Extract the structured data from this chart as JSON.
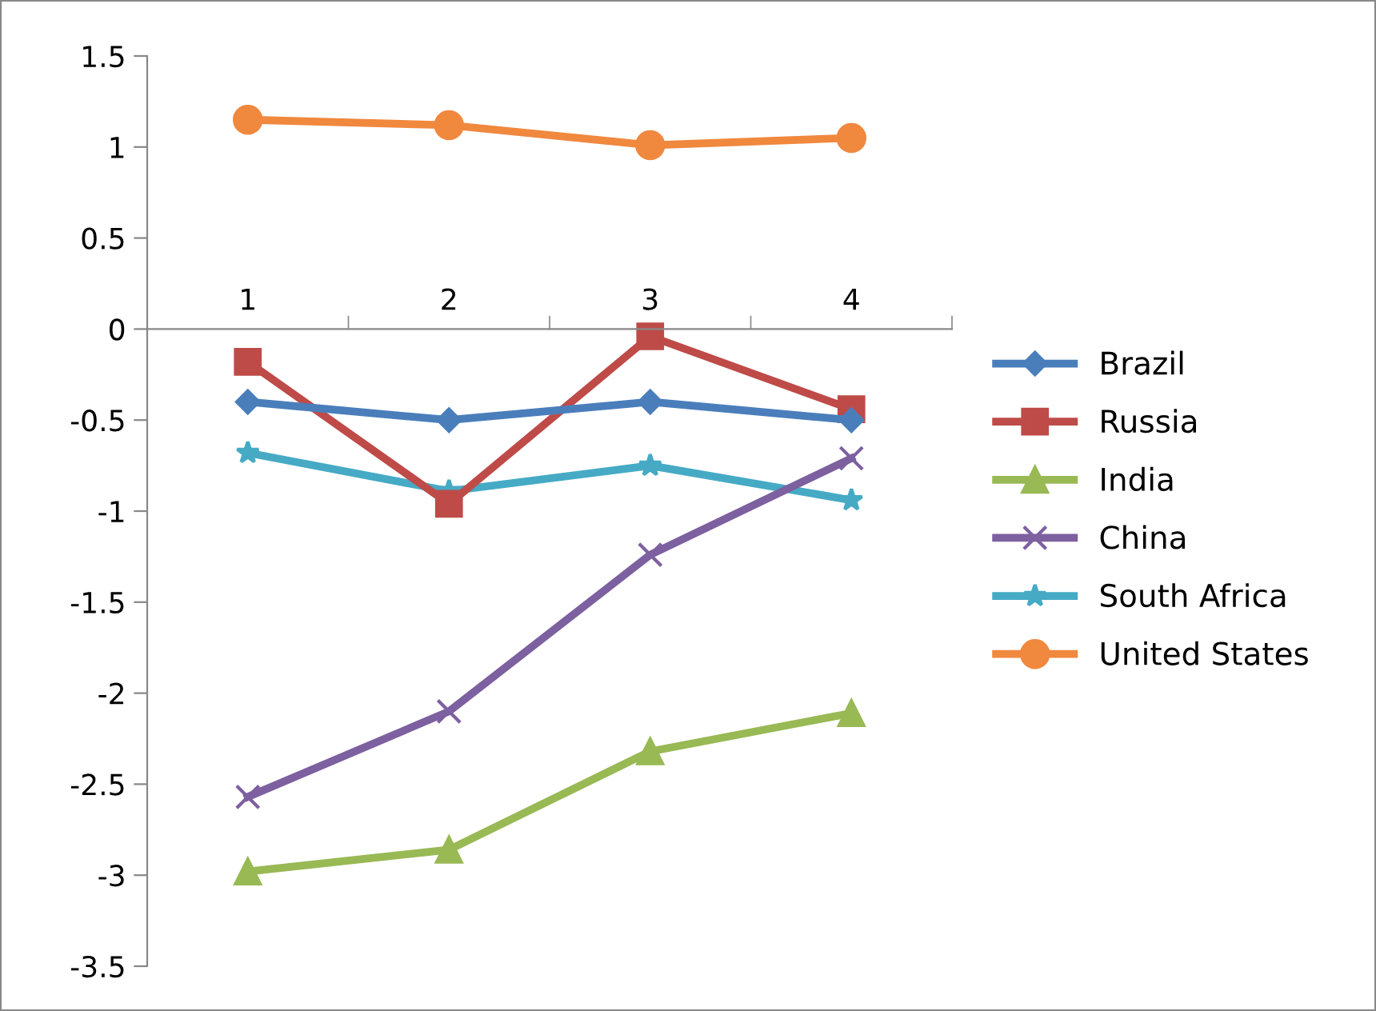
{
  "chart_data": {
    "type": "line",
    "categories": [
      "1",
      "2",
      "3",
      "4"
    ],
    "series": [
      {
        "name": "Brazil",
        "color": "#4a7ebb",
        "marker": "diamond",
        "values": [
          -0.4,
          -0.5,
          -0.4,
          -0.5
        ]
      },
      {
        "name": "Russia",
        "color": "#be4b48",
        "marker": "square",
        "values": [
          -0.18,
          -0.96,
          -0.04,
          -0.44
        ]
      },
      {
        "name": "India",
        "color": "#98b954",
        "marker": "triangle",
        "values": [
          -2.98,
          -2.86,
          -2.32,
          -2.11
        ]
      },
      {
        "name": "China",
        "color": "#7d60a0",
        "marker": "cross",
        "values": [
          -2.57,
          -2.1,
          -1.24,
          -0.71
        ]
      },
      {
        "name": "South Africa",
        "color": "#46aac5",
        "marker": "star",
        "values": [
          -0.68,
          -0.89,
          -0.75,
          -0.94
        ]
      },
      {
        "name": "United States",
        "color": "#f0883e",
        "marker": "circle",
        "values": [
          1.15,
          1.12,
          1.01,
          1.05
        ]
      }
    ],
    "ylim": [
      -3.5,
      1.5
    ],
    "yticks": [
      -3.5,
      -3,
      -2.5,
      -2,
      -1.5,
      -1,
      -0.5,
      0,
      0.5,
      1,
      1.5
    ],
    "grid": false,
    "legend": "right",
    "line_style": "solid"
  }
}
